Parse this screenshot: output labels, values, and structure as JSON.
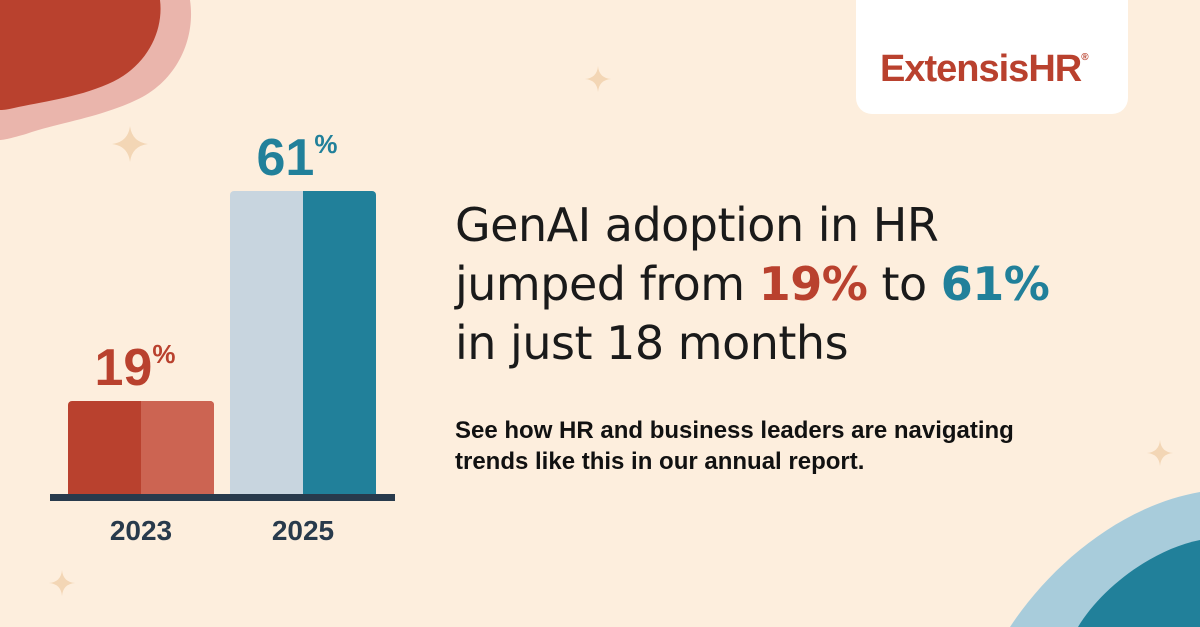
{
  "logo": {
    "text_a": "Extensis",
    "text_b": "HR",
    "mark": "®"
  },
  "headline": {
    "line1": "GenAI adoption in HR",
    "line2_pre": "jumped from ",
    "line2_val1": "19%",
    "line2_mid": " to ",
    "line2_val2": "61%",
    "line3": "in just 18 months"
  },
  "subhead": {
    "line1": "See how HR and business leaders are navigating",
    "line2": "trends like this in our annual report."
  },
  "colors": {
    "background": "#fdeedd",
    "red": "#b9412e",
    "red_light": "#cc6452",
    "teal": "#21809a",
    "bar_light": "#c8d5df",
    "axis": "#283a4c",
    "text": "#1a1a1a"
  },
  "decor_icons": [
    "sparkle-icon",
    "blob-shape",
    "wave-shape"
  ],
  "chart_data": {
    "type": "bar",
    "categories": [
      "2023",
      "2025"
    ],
    "values": [
      19,
      61
    ],
    "value_labels": [
      "19",
      "61"
    ],
    "unit": "%",
    "ylim": [
      0,
      70
    ],
    "grid": false,
    "legend": "none"
  }
}
